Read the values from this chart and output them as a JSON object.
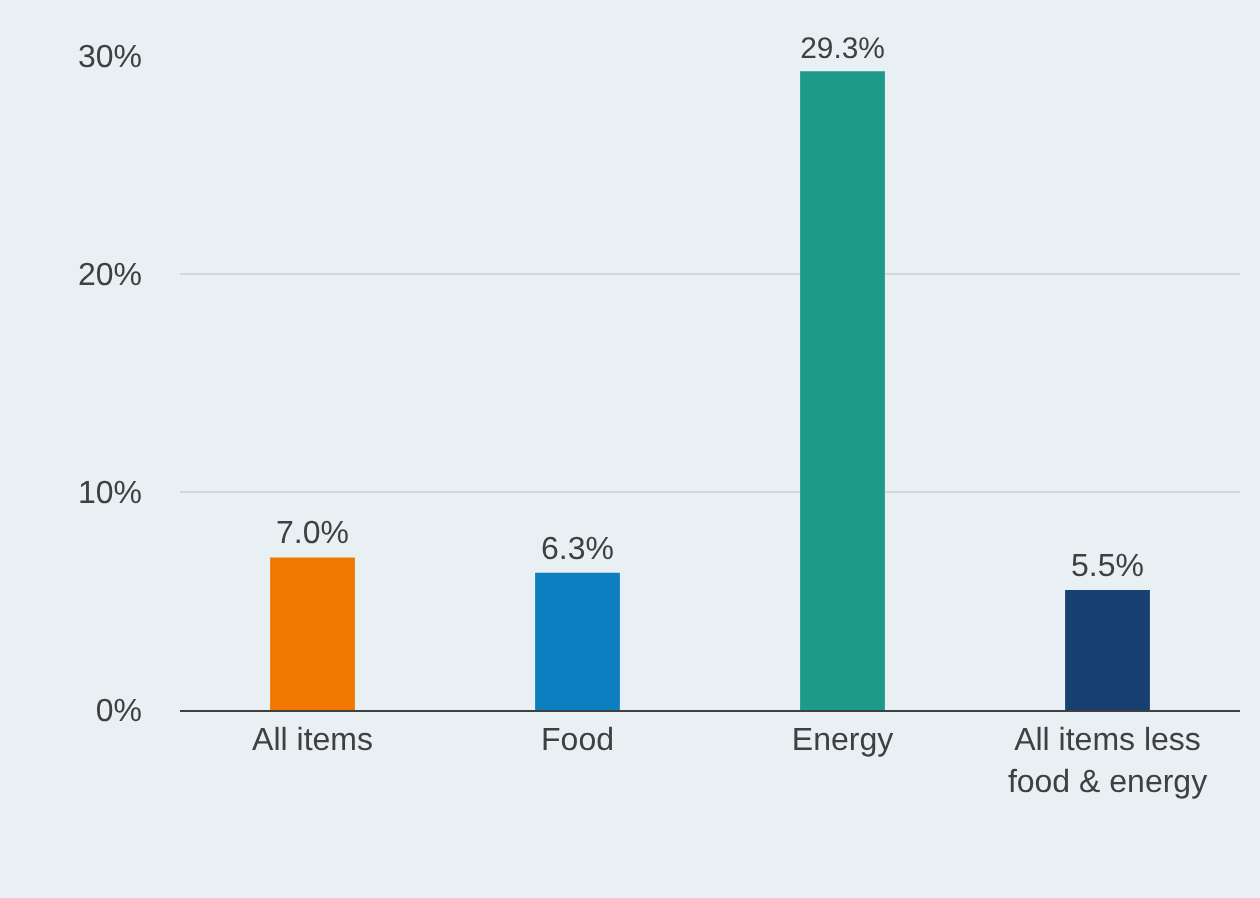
{
  "chart_data": {
    "type": "bar",
    "categories": [
      "All items",
      "Food",
      "Energy",
      "All items less food & energy"
    ],
    "values": [
      7.0,
      6.3,
      29.3,
      5.5
    ],
    "colors": [
      "#f07800",
      "#0b7fc0",
      "#1e9a8a",
      "#173f6f"
    ],
    "value_labels": [
      "7.0%",
      "6.3%",
      "29.3%",
      "5.5%"
    ],
    "ylim": [
      0,
      30
    ],
    "yticks": [
      {
        "value": 0,
        "label": "0%"
      },
      {
        "value": 10,
        "label": "10%"
      },
      {
        "value": 20,
        "label": "20%"
      },
      {
        "value": 30,
        "label": "30%"
      }
    ],
    "grid": "y"
  }
}
